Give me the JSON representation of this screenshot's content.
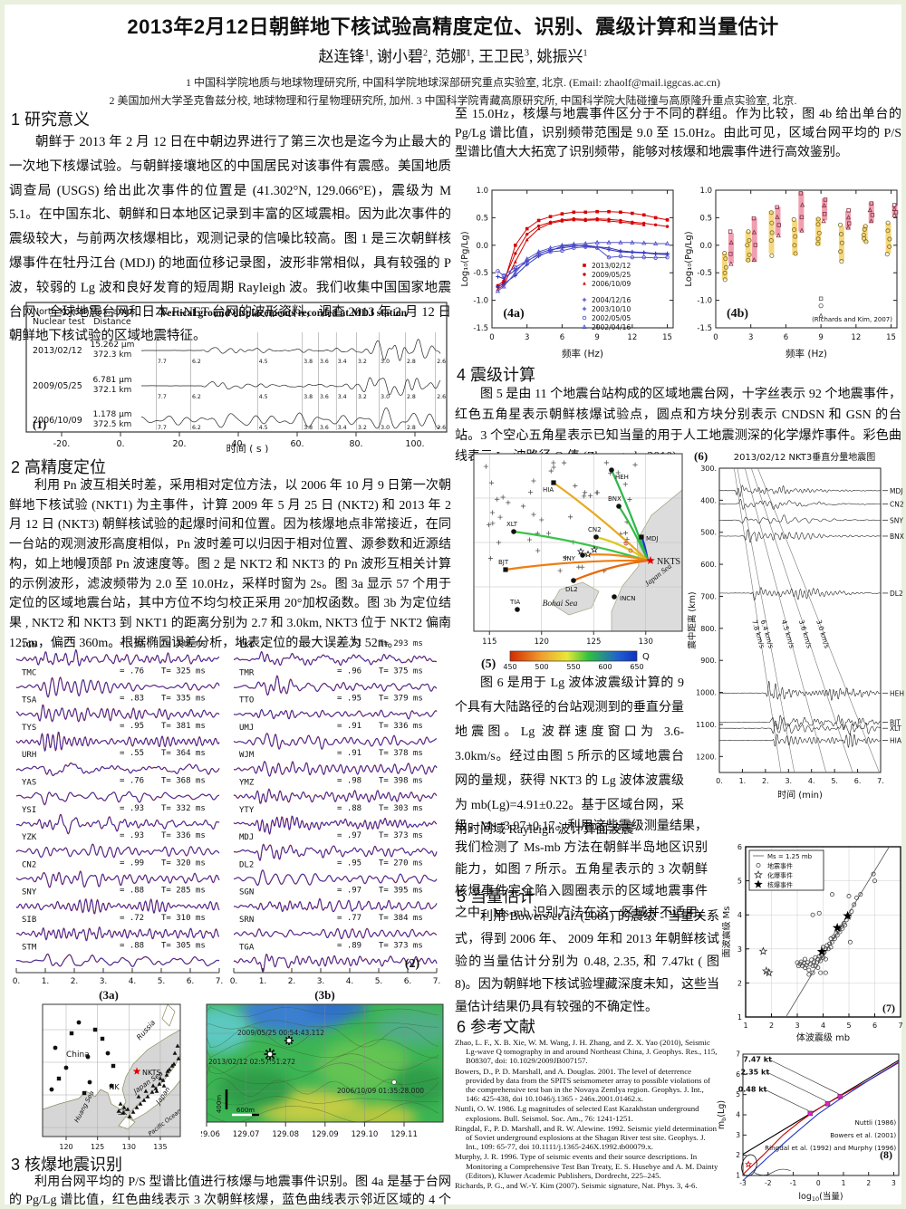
{
  "header": {
    "title": "2013年2月12日朝鲜地下核试验高精度定位、识别、震级计算和当量估计",
    "authors": [
      {
        "name": "赵连锋",
        "sup": "1"
      },
      {
        "name": "谢小碧",
        "sup": "2"
      },
      {
        "name": "范娜",
        "sup": "1"
      },
      {
        "name": "王卫民",
        "sup": "3"
      },
      {
        "name": "姚振兴",
        "sup": "1"
      }
    ],
    "affiliations": [
      "1 中国科学院地质与地球物理研究所, 中国科学院地球深部研究重点实验室, 北京. (Email: zhaolf@mail.iggcas.ac.cn)",
      "2 美国加州大学圣克鲁兹分校, 地球物理和行星物理研究所, 加州.  3 中国科学院青藏高原研究所, 中国科学院大陆碰撞与高原隆升重点实验室, 北京."
    ]
  },
  "s1": {
    "heading": "1 研究意义",
    "body": "朝鲜于 2013 年 2 月 12 日在中朝边界进行了第三次也是迄今为止最大的一次地下核爆试验。与朝鲜接壤地区的中国居民对该事件有震感。美国地质调查局 (USGS) 给出此次事件的位置是 (41.302°N, 129.066°E)，震级为 M 5.1。在中国东北、朝鲜和日本地区记录到丰富的区域震相。因为此次事件的震级较大，与前两次核爆相比，观测记录的信噪比较高。图 1 是三次朝鲜核爆事件在牡丹江台 (MDJ) 的地面位移记录图，波形非常相似，具有较强的 P 波，较弱的 Lg 波和良好发育的短周期 Rayleigh 波。我们收集中国国家地震台网、全球地震台网和日本 F-NET 台网的波形资料，调查 2013 年 2 月 12 日朝鲜地下核试验的区域地震特征。"
  },
  "fig1": {
    "label": "(1)",
    "col1_header_l1": "North Korean",
    "col1_header_l2": "Nuclear test",
    "col2_header_l1": "Max. amp.",
    "col2_header_l2": "Distance",
    "title": "Vertical ground displacements recorded at MDJ station",
    "rows": [
      {
        "date": "2013/02/12",
        "amp": "15.262 μm",
        "dist": "372.3 km"
      },
      {
        "date": "2009/05/25",
        "amp": "6.781 μm",
        "dist": "372.1 km"
      },
      {
        "date": "2006/10/09",
        "amp": "1.178 μm",
        "dist": "372.5 km"
      }
    ],
    "velocities": [
      "7.7",
      "6.2",
      "4.5",
      "3.8",
      "3.6",
      "3.4",
      "3.2",
      "3.0",
      "2.8",
      "2.6"
    ],
    "xticks": [
      "-20.",
      "0.",
      "20.",
      "40.",
      "60.",
      "80.",
      "100."
    ],
    "xlabel": "时间 ( s )"
  },
  "s2": {
    "heading": "2 高精度定位",
    "body": "利用 Pn 波互相关时差，采用相对定位方法，以 2006 年 10 月 9 日第一次朝鲜地下核试验 (NKT1) 为主事件，计算 2009 年 5 月 25 日 (NKT2) 和 2013 年 2 月 12 日 (NKT3) 朝鲜核试验的起爆时间和位置。因为核爆地点非常接近，在同一台站的观测波形高度相似，Pn 波时差可以归因于相对位置、源参数和近源结构，如上地幔顶部 Pn 波速度等。图 2 是 NKT2 和 NKT3 的 Pn 波形互相关计算的示例波形，滤波频带为 2.0 至 10.0Hz，采样时窗为 2s。图 3a 显示 57 个用于定位的区域地震台站，其中方位不均匀校正采用 20°加权函数。图 3b 为定位结果 , NKT2 和 NKT3 到 NKT1 的距离分别为 2.7 和 3.0km, NKT3 位于 NKT2 偏南 125m，偏西 360m。根据椭园误差分析，地表定位的最大误差为 52m。"
  },
  "fig2": {
    "label": "(2)",
    "xticks": [
      "0.",
      "1.",
      "2.",
      "3.",
      "4.",
      "5.",
      "6.",
      "7."
    ],
    "left": [
      {
        "sta": "TGW",
        "cc": "= .93",
        "t": "T= 380 ms"
      },
      {
        "sta": "TMC",
        "cc": "= .76",
        "t": "T= 325 ms"
      },
      {
        "sta": "TSA",
        "cc": "= .83",
        "t": "T= 335 ms"
      },
      {
        "sta": "TYS",
        "cc": "= .95",
        "t": "T= 381 ms"
      },
      {
        "sta": "URH",
        "cc": "= .55",
        "t": "T= 364 ms"
      },
      {
        "sta": "YAS",
        "cc": "= .76",
        "t": "T= 368 ms"
      },
      {
        "sta": "YSI",
        "cc": "= .93",
        "t": "T= 332 ms"
      },
      {
        "sta": "YZK",
        "cc": "= .93",
        "t": "T= 336 ms"
      },
      {
        "sta": "CN2",
        "cc": "= .99",
        "t": "T= 320 ms"
      },
      {
        "sta": "SNY",
        "cc": "= .88",
        "t": "T= 285 ms"
      },
      {
        "sta": "SIB",
        "cc": "= .72",
        "t": "T= 310 ms"
      },
      {
        "sta": "STM",
        "cc": "= .88",
        "t": "T= 305 ms"
      }
    ],
    "right": [
      {
        "sta": "TKO",
        "cc": "= .51",
        "t": "T= 293 ms"
      },
      {
        "sta": "TMR",
        "cc": "= .96",
        "t": "T= 375 ms"
      },
      {
        "sta": "TTO",
        "cc": "= .95",
        "t": "T= 379 ms"
      },
      {
        "sta": "UMJ",
        "cc": "= .91",
        "t": "T= 336 ms"
      },
      {
        "sta": "WJM",
        "cc": "= .91",
        "t": "T= 378 ms"
      },
      {
        "sta": "YMZ",
        "cc": "= .98",
        "t": "T= 398 ms"
      },
      {
        "sta": "YTY",
        "cc": "= .88",
        "t": "T= 303 ms"
      },
      {
        "sta": "MDJ",
        "cc": "= .97",
        "t": "T= 373 ms"
      },
      {
        "sta": "DL2",
        "cc": "= .95",
        "t": "T= 270 ms"
      },
      {
        "sta": "SGN",
        "cc": "= .97",
        "t": "T= 395 ms"
      },
      {
        "sta": "SRN",
        "cc": "= .77",
        "t": "T= 384 ms"
      },
      {
        "sta": "TGA",
        "cc": "= .89",
        "t": "T= 373 ms"
      }
    ]
  },
  "fig3a": {
    "label": "(3a)",
    "xticks": [
      "120",
      "125",
      "130",
      "135"
    ],
    "labels": {
      "russia": "Russia",
      "china": "China",
      "nkts": "NKTS",
      "nk": "NK",
      "sk": "SK",
      "japansea": "Japan Sea",
      "huangsea": "Huang Sea",
      "japan": "Japan",
      "pacific": "Pacific Ocean"
    }
  },
  "fig3b": {
    "label": "(3b)",
    "xticks": [
      "129.06",
      "129.07",
      "129.08",
      "129.09",
      "129.10",
      "129.11"
    ],
    "events": [
      {
        "time": "2009/05/25 00:54:43.112"
      },
      {
        "time": "2013/02/12 02:57:51.272"
      },
      {
        "time": "2006/10/09 01:35:28.000"
      }
    ],
    "scale_v": "400m",
    "scale_h": "600m"
  },
  "s3": {
    "heading": "3 核爆地震识别",
    "body": "利用台网平均的 P/S 型谱比值进行核爆与地震事件识别。图 4a 是基于台网的 Pg/Lg 谱比值，红色曲线表示 3 次朝鲜核爆，蓝色曲线表示邻近区域的 4 个天然地震事件。从 2.0",
    "body_cont": "至 15.0Hz，核爆与地震事件区分于不同的群组。作为比较，图 4b 给出单台的 Pg/Lg 谱比值，识别频带范围是 9.0 至 15.0Hz。由此可见，区域台网平均的 P/S 型谱比值大大拓宽了识别频带，能够对核爆和地震事件进行高效鉴别。"
  },
  "fig4a": {
    "label": "(4a)",
    "xlabel": "频率 (Hz)",
    "ylabel": "Log₁₀(Pg/Lg)",
    "xticks": [
      0,
      3,
      6,
      9,
      12,
      15
    ],
    "yticks": [
      -1.5,
      -1.0,
      -0.5,
      0.0,
      0.5,
      1.0
    ],
    "x": [
      0.5,
      1,
      2,
      3,
      4,
      5,
      6,
      7,
      8,
      9,
      10,
      11,
      12,
      13,
      14,
      15
    ],
    "series": [
      {
        "name": "2013/02/12",
        "color": "#d40000",
        "marker": "square",
        "y": [
          -0.75,
          -0.7,
          0.0,
          0.3,
          0.45,
          0.52,
          0.57,
          0.6,
          0.6,
          0.61,
          0.61,
          0.6,
          0.58,
          0.55,
          0.5,
          0.46
        ]
      },
      {
        "name": "2009/05/25",
        "color": "#d40000",
        "marker": "circle",
        "y": [
          -0.73,
          -0.65,
          -0.15,
          0.2,
          0.35,
          0.42,
          0.46,
          0.48,
          0.47,
          0.48,
          0.47,
          0.45,
          0.42,
          0.4,
          0.37,
          0.34
        ]
      },
      {
        "name": "2006/10/09",
        "color": "#d40000",
        "marker": "tri",
        "y": [
          -0.8,
          -0.72,
          -0.3,
          0.1,
          0.3,
          0.4,
          0.44,
          0.46,
          0.45,
          0.46,
          0.44,
          0.42,
          0.4,
          0.37,
          null,
          null
        ]
      },
      {
        "name": "2004/12/16",
        "color": "#3333bb",
        "marker": "plus",
        "y": [
          -0.75,
          -0.7,
          -0.55,
          -0.35,
          -0.2,
          -0.1,
          -0.02,
          0.0,
          -0.02,
          -0.03,
          -0.05,
          -0.1,
          -0.12,
          -0.13,
          -0.15,
          -0.15
        ]
      },
      {
        "name": "2003/10/10",
        "color": "#3333bb",
        "marker": "plus",
        "y": [
          -0.57,
          -0.6,
          -0.45,
          -0.3,
          -0.15,
          -0.08,
          -0.05,
          -0.02,
          0.0,
          -0.03,
          -0.08,
          -0.12,
          -0.13,
          -0.14,
          -0.16,
          -0.17
        ]
      },
      {
        "name": "2002/05/05",
        "color": "#5555cc",
        "marker": "ocircle",
        "y": [
          -0.47,
          -0.55,
          -0.4,
          -0.28,
          -0.18,
          -0.12,
          -0.1,
          -0.05,
          -0.03,
          -0.05,
          -0.22,
          -0.2,
          -0.22,
          -0.22,
          -0.23,
          -0.22
        ]
      },
      {
        "name": "2002/04/16",
        "color": "#5555cc",
        "marker": "otri",
        "y": [
          -0.83,
          -0.75,
          -0.5,
          -0.25,
          -0.12,
          -0.05,
          0.0,
          0.02,
          0.03,
          0.05,
          0.05,
          0.05,
          0.05,
          0.04,
          0.03,
          0.03
        ]
      }
    ]
  },
  "fig4b": {
    "label": "(4b)",
    "xlabel": "频率 (Hz)",
    "ylabel": "Log₁₀(Pg/Lg)",
    "xticks": [
      0,
      3,
      6,
      9,
      12,
      15
    ],
    "yticks": [
      -1.5,
      -1.0,
      -0.5,
      0.0,
      0.5,
      1.0
    ],
    "citation": "(Richards and Kim, 2007)",
    "freqs": [
      1,
      3,
      5,
      7,
      9,
      11,
      13,
      15
    ],
    "eq_bars": [
      [
        -0.62,
        -0.15
      ],
      [
        -0.3,
        0.25
      ],
      [
        -0.15,
        0.62
      ],
      [
        -0.18,
        0.45
      ],
      [
        0.0,
        0.5
      ],
      [
        -0.28,
        0.35
      ],
      [
        0.05,
        0.35
      ],
      [
        -0.15,
        0.4
      ]
    ],
    "ex_bars": [
      [
        -0.33,
        0.22
      ],
      [
        -0.3,
        0.5
      ],
      [
        0.18,
        0.7
      ],
      [
        0.25,
        0.97
      ],
      [
        0.45,
        0.85
      ],
      [
        0.3,
        0.62
      ],
      [
        0.42,
        0.78
      ],
      [
        0.55,
        0.72
      ]
    ],
    "eq_color": "#f6d77f",
    "ex_color": "#ef9fb0"
  },
  "s4": {
    "heading": "4 震级计算",
    "body": "图 5 是由 11 个地震台站构成的区域地震台网，十字丝表示 92 个地震事件，红色五角星表示朝鲜核爆试验点，圆点和方块分别表示 CNDSN 和 GSN 的台站。3 个空心五角星表示已知当量的用于人工地震测深的化学爆炸事件。彩色曲线表示 Lg 波路径 Q 值 (Zhao et al., 2010)。",
    "body2": "图 6 是用于 Lg 波体波震级计算的 9 个具有大陆路径的台站观测到的垂直分量地震图。Lg 波群速度窗口为 3.6-3.0km/s。经过由图 5 所示的区域地震台网的量规，获得 NKT3 的 Lg 波体波震级为 mb(Lg)=4.91±0.22。基于区域台网，采用时间域 Rayleigh 波计算面波震",
    "body2_cont": "级，Ms=3.97±0.17。利用这些震级测量结果，我们检测了 Ms-mb 方法在朝鲜半岛地区识别能力，如图 7 所示。五角星表示的 3 次朝鲜核爆事件完全陷入圆圈表示的区域地震事件之中，Ms-mb 识别方法在这一区域并不适用。"
  },
  "fig5": {
    "label": "(5)",
    "xticks": [
      "115",
      "120",
      "125",
      "130"
    ],
    "source": "NKTS",
    "sea_labels": [
      "Bohai Sea",
      "Japan Sea"
    ],
    "stations": [
      "HEH",
      "HIA",
      "BNX",
      "XLT",
      "CN2",
      "MDJ",
      "SNY",
      "BJT",
      "DL2",
      "INCN",
      "TIA"
    ],
    "colorbar": {
      "label": "Q",
      "ticks": [
        "450",
        "500",
        "550",
        "600",
        "650"
      ]
    }
  },
  "fig6": {
    "label": "(6)",
    "title": "2013/02/12 NKT3垂直分量地震图",
    "ylabel": "震中距离 (km)",
    "xlabel": "时间 (min)",
    "yticks": [
      "300.",
      "400.",
      "500.",
      "600.",
      "700.",
      "800.",
      "900.",
      "1000.",
      "1100.",
      "1200."
    ],
    "xticks": [
      "0.",
      "1.",
      "2.",
      "3.",
      "4.",
      "5.",
      "6.",
      "7."
    ],
    "velocities": [
      "7.8 km/s",
      "6.4 km/s",
      "4.5 km/s",
      "3.6 km/s",
      "3.0 km/s"
    ],
    "vel_values": [
      7.8,
      6.4,
      4.5,
      3.6,
      3.0
    ],
    "stations": [
      {
        "name": "MDJ",
        "dist": 370
      },
      {
        "name": "CN2",
        "dist": 412
      },
      {
        "name": "SNY",
        "dist": 462
      },
      {
        "name": "BNX",
        "dist": 512
      },
      {
        "name": "DL2",
        "dist": 690
      },
      {
        "name": "HEH",
        "dist": 1002
      },
      {
        "name": "BJT",
        "dist": 1093
      },
      {
        "name": "XLT",
        "dist": 1112
      },
      {
        "name": "HIA",
        "dist": 1150
      }
    ]
  },
  "s5": {
    "heading": "5 当量估计",
    "body": "利用 Bowers et al. (2001) 的震级 - 当量关系式，得到 2006 年、 2009 年和 2013 年朝鲜核试验的当量估计分别为 0.48, 2.35, 和 7.47kt ( 图 8)。因为朝鲜地下核试验埋藏深度未知，这些当量估计结果仍具有较强的不确定性。"
  },
  "s6": {
    "heading": "6 参考文献",
    "refs": [
      "Zhao, L. F., X. B. Xie, W. M. Wang, J. H. Zhang, and Z. X. Yao (2010), Seismic Lg-wave Q tomography in and around Northeast China, J. Geophys. Res., 115, B08307, doi: 10.1029/2009JB007157.",
      "Bowers, D., P. D. Marshall, and A. Douglas. 2001. The level of deterrence provided by data from the SPITS seismometer array to possible violations of the comprehensive test ban in the Novaya Zemlya region. Geophys. J. Int., 146: 425-438, doi 10.1046/j.1365 - 246x.2001.01462.x.",
      "Nuttli, O. W. 1986. Lg magnitudes of selected East Kazakhstan underground explosions. Bull. Seismol. Soc. Am., 76: 1241-1251.",
      "Ringdal, F., P. D. Marshall, and R. W. Alewine. 1992. Seismic yield determination of Soviet underground explosions at the Shagan River test site. Geophys. J. Int., 109: 65-77, doi 10.1111/j.1365-246X.1992.tb00079.x.",
      "Murphy, J. R. 1996. Type of seismic events and their source descriptions. In Monitoring a Comprehensive Test Ban Treaty, E. S. Husebye and A. M. Dainty (Editors), Kluwer Academic Publishers, Dordrecht, 225–245.",
      "Richards, P. G., and W.-Y. Kim (2007). Seismic signature, Nat. Phys. 3, 4-6."
    ]
  },
  "fig7": {
    "label": "(7)",
    "xlabel": "体波震级  mb",
    "ylabel": "面波震级  Ms",
    "xticks": [
      1,
      2,
      3,
      4,
      5,
      6,
      7
    ],
    "yticks": [
      1,
      2,
      3,
      4,
      5,
      6
    ],
    "legend": [
      {
        "marker": "line",
        "label": "Ms = 1.25 mb"
      },
      {
        "marker": "circle",
        "label": "地震事件"
      },
      {
        "marker": "openstar",
        "label": "化爆事件"
      },
      {
        "marker": "star",
        "label": "核爆事件"
      }
    ],
    "earthquakes": [
      [
        3.0,
        2.6
      ],
      [
        3.05,
        2.5
      ],
      [
        3.1,
        2.56
      ],
      [
        3.15,
        2.62
      ],
      [
        3.2,
        2.5
      ],
      [
        3.25,
        2.58
      ],
      [
        3.3,
        2.45
      ],
      [
        3.3,
        2.7
      ],
      [
        3.35,
        2.52
      ],
      [
        3.4,
        2.6
      ],
      [
        3.45,
        2.38
      ],
      [
        3.5,
        2.55
      ],
      [
        3.55,
        2.68
      ],
      [
        3.6,
        2.5
      ],
      [
        3.6,
        2.3
      ],
      [
        3.65,
        2.62
      ],
      [
        3.7,
        2.75
      ],
      [
        3.7,
        2.5
      ],
      [
        3.75,
        2.6
      ],
      [
        3.8,
        2.7
      ],
      [
        3.8,
        2.45
      ],
      [
        3.85,
        2.78
      ],
      [
        3.9,
        2.65
      ],
      [
        3.9,
        2.3
      ],
      [
        3.95,
        2.8
      ],
      [
        4.0,
        2.75
      ],
      [
        4.0,
        3.05
      ],
      [
        4.05,
        2.9
      ],
      [
        4.1,
        3.0
      ],
      [
        4.1,
        2.7
      ],
      [
        4.15,
        3.1
      ],
      [
        4.2,
        3.0
      ],
      [
        4.25,
        3.15
      ],
      [
        4.3,
        3.05
      ],
      [
        4.3,
        3.3
      ],
      [
        4.35,
        3.2
      ],
      [
        4.4,
        3.35
      ],
      [
        4.45,
        3.3
      ],
      [
        4.5,
        3.45
      ],
      [
        4.55,
        3.4
      ],
      [
        4.6,
        3.55
      ],
      [
        4.65,
        3.5
      ],
      [
        4.7,
        3.65
      ],
      [
        4.75,
        3.6
      ],
      [
        4.8,
        3.75
      ],
      [
        4.85,
        3.7
      ],
      [
        4.9,
        3.85
      ],
      [
        5.0,
        3.95
      ],
      [
        5.05,
        3.2
      ],
      [
        5.1,
        4.1
      ],
      [
        5.2,
        4.3
      ],
      [
        5.3,
        4.5
      ],
      [
        5.45,
        4.6
      ],
      [
        5.0,
        4.55
      ],
      [
        4.35,
        4.6
      ],
      [
        3.85,
        4.05
      ],
      [
        3.6,
        4.0
      ],
      [
        5.95,
        5.2
      ],
      [
        6.0,
        5.0
      ],
      [
        3.45,
        2.25
      ],
      [
        4.1,
        2.3
      ]
    ],
    "chemical": [
      [
        1.68,
        2.93
      ],
      [
        1.8,
        2.35
      ],
      [
        1.9,
        2.3
      ]
    ],
    "nuclear": [
      [
        3.95,
        2.92
      ],
      [
        4.55,
        3.62
      ],
      [
        4.95,
        3.97
      ]
    ]
  },
  "fig8": {
    "label": "(8)",
    "xlabel_pre": "log",
    "xlabel_sub": "10",
    "xlabel_post": "(当量)",
    "ylabel_pre": "m",
    "ylabel_sub": "b",
    "ylabel_post": "(Lg)",
    "xticks": [
      -3,
      -2,
      -1,
      0,
      1,
      2,
      3
    ],
    "yticks": [
      1,
      2,
      3,
      4,
      5,
      6,
      7
    ],
    "lines": [
      {
        "name": "Ringdal et al. (1992) and Murphy (1996)",
        "color": "#000000",
        "pts": [
          [
            -3,
            2.05
          ],
          [
            3.2,
            6.7
          ]
        ]
      },
      {
        "name": "Bowers et al. (2001)",
        "color": "#cc0000",
        "pts": [
          [
            -3,
            1.05
          ],
          [
            -2.2,
            2.0
          ],
          [
            -1.4,
            3.0
          ],
          [
            -0.8,
            3.6
          ],
          [
            -0.3,
            4.05
          ],
          [
            0.2,
            4.45
          ],
          [
            0.9,
            4.95
          ],
          [
            2,
            5.7
          ],
          [
            3.2,
            6.62
          ]
        ]
      },
      {
        "name": "Nuttli (1986)",
        "color": "#2233cc",
        "pts": [
          [
            -3,
            0.75
          ],
          [
            -2,
            1.9
          ],
          [
            -1,
            3.0
          ],
          [
            0,
            4.05
          ],
          [
            1,
            4.9
          ],
          [
            2,
            5.7
          ],
          [
            3.2,
            6.58
          ]
        ]
      }
    ],
    "legend_order": [
      "Nuttli (1986)",
      "Bowers et al. (2001)",
      "Ringdal et al. (1992) and Murphy (1996)"
    ],
    "legend_colors": [
      "#2233cc",
      "#cc0000",
      "#000000"
    ],
    "points": [
      [
        -0.32,
        4.07
      ],
      [
        0.37,
        4.55
      ],
      [
        0.87,
        4.91
      ]
    ],
    "yield_labels": [
      "0.48 kt",
      "2.35 kt",
      "7.47 kt"
    ],
    "point_color": "#e020c0"
  }
}
